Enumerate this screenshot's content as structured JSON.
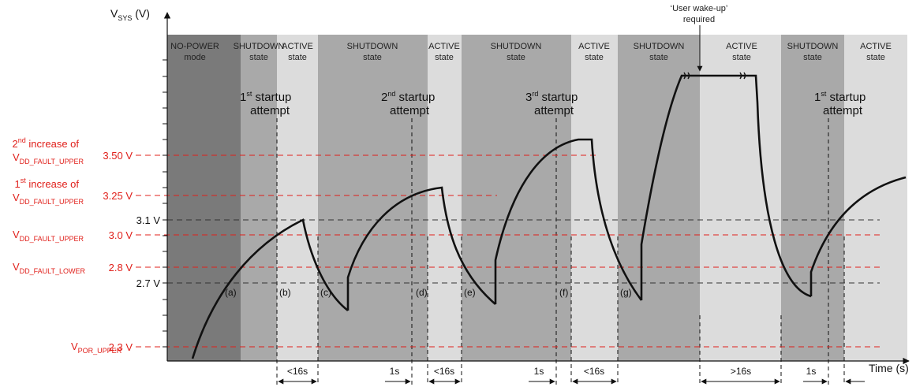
{
  "axes": {
    "y_label_main": "V",
    "y_label_sub": "SYS",
    "y_label_unit": " (V)",
    "x_label": "Time (s)"
  },
  "zones": [
    {
      "line1": "NO-POWER",
      "line2": "mode",
      "color": "#7a7a7a"
    },
    {
      "line1": "SHUTDOWN",
      "line2": "state",
      "color": "#a9a9a9"
    },
    {
      "line1": "ACTIVE",
      "line2": "state",
      "color": "#dcdcdc"
    },
    {
      "line1": "SHUTDOWN",
      "line2": "state",
      "color": "#a9a9a9"
    },
    {
      "line1": "ACTIVE",
      "line2": "state",
      "color": "#dcdcdc"
    },
    {
      "line1": "SHUTDOWN",
      "line2": "state",
      "color": "#a9a9a9"
    },
    {
      "line1": "ACTIVE",
      "line2": "state",
      "color": "#dcdcdc"
    },
    {
      "line1": "SHUTDOWN",
      "line2": "state",
      "color": "#a9a9a9"
    },
    {
      "line1": "ACTIVE",
      "line2": "state",
      "color": "#dcdcdc"
    },
    {
      "line1": "SHUTDOWN",
      "line2": "state",
      "color": "#a9a9a9"
    },
    {
      "line1": "ACTIVE",
      "line2": "state",
      "color": "#dcdcdc"
    }
  ],
  "startup_attempts": [
    {
      "num": "1",
      "sup": "st",
      "line1": " startup",
      "line2": "attempt"
    },
    {
      "num": "2",
      "sup": "nd",
      "line1": " startup",
      "line2": "attempt"
    },
    {
      "num": "3",
      "sup": "rd",
      "line1": " startup",
      "line2": "attempt"
    },
    {
      "num": "1",
      "sup": "st",
      "line1": " startup",
      "line2": "attempt"
    }
  ],
  "wakeup": {
    "line1": "‘User wake-up’",
    "line2": "required"
  },
  "levels": {
    "l350": {
      "value": "3.50 V",
      "name_pre_num": "2",
      "name_pre_sup": "nd",
      "name_pre_text": " increase of",
      "name_main": "V",
      "name_sub": "DD_FAULT_UPPER"
    },
    "l325": {
      "value": "3.25 V",
      "name_pre_num": "1",
      "name_pre_sup": "st",
      "name_pre_text": " increase of",
      "name_main": "V",
      "name_sub": "DD_FAULT_UPPER"
    },
    "l31": {
      "value": "3.1 V"
    },
    "l30": {
      "value": "3.0 V",
      "name_main": "V",
      "name_sub": "DD_FAULT_UPPER"
    },
    "l28": {
      "value": "2.8 V",
      "name_main": "V",
      "name_sub": "DD_FAULT_LOWER"
    },
    "l27": {
      "value": "2.7 V"
    },
    "l23": {
      "value": "2.3 V",
      "name_main": "V",
      "name_sub": "POR_UPPER"
    }
  },
  "points": [
    "(a)",
    "(b)",
    "(c)",
    "(d)",
    "(e)",
    "(f)",
    "(g)"
  ],
  "durations": [
    "<16s",
    "1s",
    "<16s",
    "1s",
    "<16s",
    ">16s",
    "1s"
  ],
  "colors": {
    "red": "#e0201b",
    "black": "#111111",
    "dash_black": "#333333"
  }
}
